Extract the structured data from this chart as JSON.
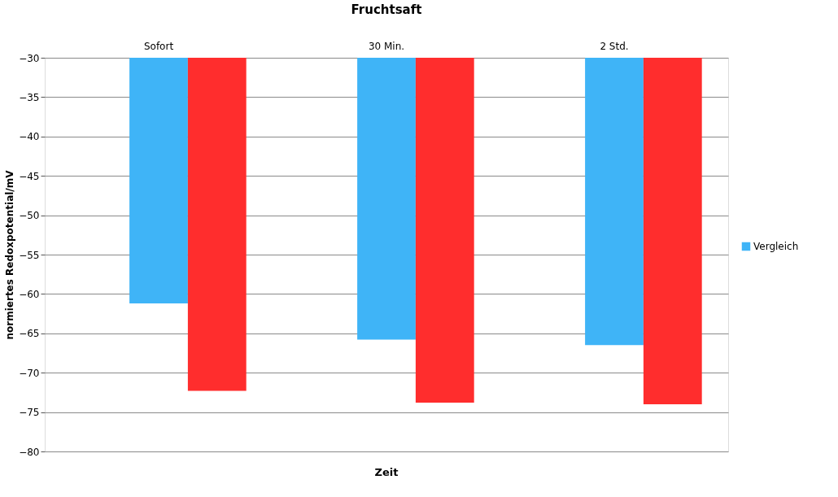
{
  "chart_data": {
    "type": "bar",
    "title": "Fruchtsaft",
    "xlabel": "Zeit",
    "ylabel": "normiertes Redoxpotential/mV",
    "categories": [
      "Sofort",
      "30 Min.",
      "2 Std."
    ],
    "series": [
      {
        "name": "Vergleich",
        "color": "#3fb4f7",
        "values": [
          -61.2,
          -65.8,
          -66.5
        ]
      },
      {
        "color": "#ff2d2d",
        "values": [
          -72.3,
          -73.8,
          -74.0
        ]
      }
    ],
    "ylim": [
      -80,
      -30
    ],
    "yticks": [
      -80,
      -75,
      -70,
      -65,
      -60,
      -55,
      -50,
      -45,
      -40,
      -35,
      -30
    ],
    "grid": "y",
    "legend": "right"
  }
}
